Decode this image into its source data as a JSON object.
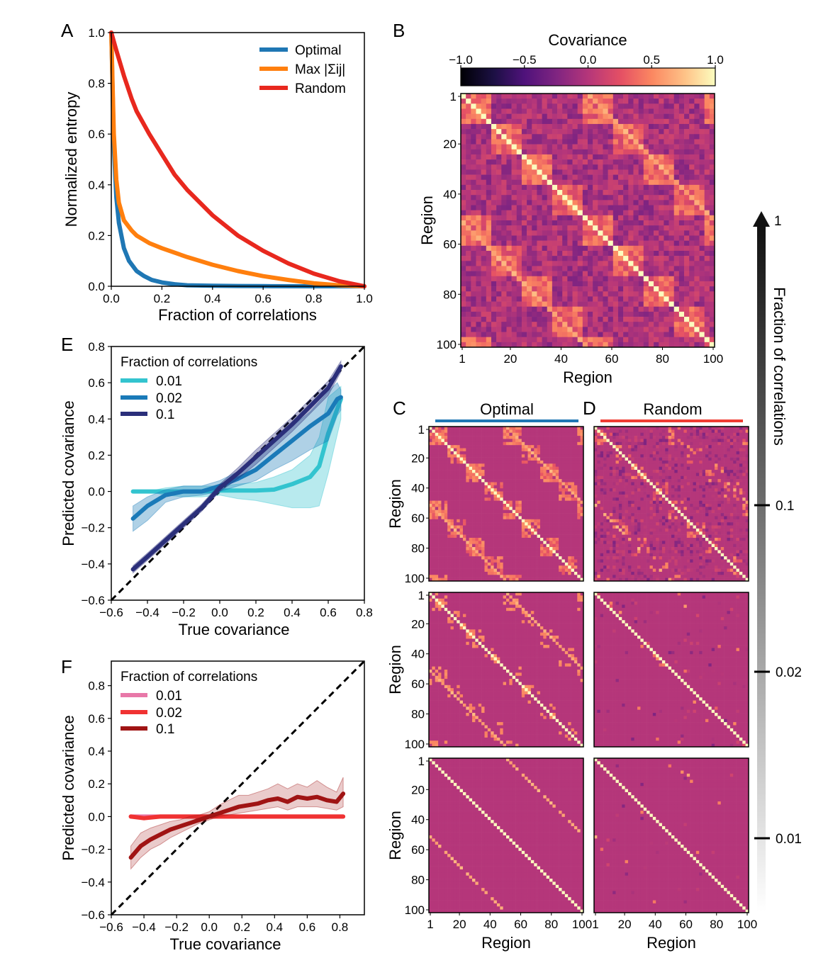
{
  "panels": {
    "A": "A",
    "B": "B",
    "C": "C",
    "D": "D",
    "E": "E",
    "F": "F"
  },
  "colorbar": {
    "title": "Covariance",
    "ticks": [
      "−1.0",
      "−0.5",
      "0.0",
      "0.5",
      "1.0"
    ],
    "colormap": "magma"
  },
  "fraction_bar": {
    "title": "Fraction of correlations",
    "top_label": "1",
    "ticks": [
      "0.1",
      "0.02",
      "0.01"
    ]
  },
  "col_headers": {
    "optimal": "Optimal",
    "random": "Random",
    "optimal_color": "#1f77b4",
    "random_color": "#f03c32"
  },
  "heatmap_labels": {
    "region": "Region",
    "ticks": [
      "1",
      "20",
      "40",
      "60",
      "80",
      "100"
    ]
  },
  "chart_data": [
    {
      "id": "A",
      "type": "line",
      "xlabel": "Fraction of correlations",
      "ylabel": "Normalized entropy",
      "xlim": [
        0.0,
        1.0
      ],
      "ylim": [
        0.0,
        1.0
      ],
      "xticks": [
        "0.0",
        "0.2",
        "0.4",
        "0.6",
        "0.8",
        "1.0"
      ],
      "yticks": [
        "0.0",
        "0.2",
        "0.4",
        "0.6",
        "0.8",
        "1.0"
      ],
      "legend": "top-right",
      "series": [
        {
          "name": "Optimal",
          "color": "#1f77b4",
          "x": [
            0.0,
            0.01,
            0.02,
            0.03,
            0.05,
            0.07,
            0.1,
            0.13,
            0.16,
            0.2,
            0.25,
            0.3,
            0.4,
            0.5,
            0.6,
            0.8,
            1.0
          ],
          "y": [
            1.0,
            0.55,
            0.35,
            0.25,
            0.15,
            0.1,
            0.06,
            0.04,
            0.025,
            0.015,
            0.008,
            0.004,
            0.002,
            0.001,
            0.0005,
            0.0,
            0.0
          ]
        },
        {
          "name": "Max |Σij|",
          "color": "#ff7f0e",
          "x": [
            0.0,
            0.01,
            0.02,
            0.03,
            0.05,
            0.08,
            0.1,
            0.15,
            0.2,
            0.3,
            0.4,
            0.5,
            0.6,
            0.7,
            0.8,
            0.9,
            1.0
          ],
          "y": [
            1.0,
            0.6,
            0.42,
            0.33,
            0.26,
            0.22,
            0.2,
            0.17,
            0.15,
            0.115,
            0.085,
            0.06,
            0.04,
            0.025,
            0.012,
            0.004,
            0.0
          ]
        },
        {
          "name": "Random",
          "color": "#e8281e",
          "x": [
            0.0,
            0.02,
            0.05,
            0.08,
            0.1,
            0.15,
            0.2,
            0.25,
            0.3,
            0.4,
            0.5,
            0.6,
            0.7,
            0.8,
            0.9,
            1.0
          ],
          "y": [
            1.0,
            0.93,
            0.83,
            0.74,
            0.69,
            0.6,
            0.52,
            0.44,
            0.38,
            0.28,
            0.2,
            0.14,
            0.09,
            0.05,
            0.02,
            0.0
          ]
        }
      ]
    },
    {
      "id": "E",
      "type": "line",
      "xlabel": "True covariance",
      "ylabel": "Predicted covariance",
      "xlim": [
        -0.6,
        0.8
      ],
      "ylim": [
        -0.6,
        0.8
      ],
      "xticks": [
        "−0.6",
        "−0.4",
        "−0.2",
        "0.0",
        "0.2",
        "0.4",
        "0.6",
        "0.8"
      ],
      "yticks": [
        "−0.6",
        "−0.4",
        "−0.2",
        "0.0",
        "0.2",
        "0.4",
        "0.6",
        "0.8"
      ],
      "legend_title": "Fraction of correlations",
      "legend": "top-left",
      "series": [
        {
          "name": "0.01",
          "color": "#33c4cf",
          "fill": "rgba(51,196,207,0.35)",
          "x": [
            -0.48,
            -0.4,
            -0.3,
            -0.2,
            -0.1,
            0.0,
            0.1,
            0.2,
            0.3,
            0.4,
            0.5,
            0.55,
            0.6,
            0.67
          ],
          "y": [
            0.0,
            0.0,
            0.0,
            0.0,
            0.0,
            0.005,
            0.005,
            0.005,
            0.01,
            0.04,
            0.08,
            0.14,
            0.32,
            0.51
          ],
          "lo": [
            0.0,
            0.0,
            -0.02,
            -0.03,
            -0.03,
            -0.02,
            -0.04,
            -0.05,
            -0.07,
            -0.09,
            -0.09,
            -0.08,
            0.1,
            0.4
          ],
          "hi": [
            0.0,
            0.0,
            0.02,
            0.03,
            0.03,
            0.03,
            0.04,
            0.05,
            0.08,
            0.12,
            0.2,
            0.3,
            0.52,
            0.58
          ]
        },
        {
          "name": "0.02",
          "color": "#1a7ab8",
          "fill": "rgba(26,122,184,0.35)",
          "x": [
            -0.48,
            -0.4,
            -0.3,
            -0.2,
            -0.1,
            0.0,
            0.1,
            0.2,
            0.3,
            0.4,
            0.5,
            0.6,
            0.65,
            0.67
          ],
          "y": [
            -0.15,
            -0.08,
            -0.02,
            0.0,
            0.0,
            0.03,
            0.07,
            0.12,
            0.2,
            0.28,
            0.36,
            0.43,
            0.51,
            0.52
          ],
          "lo": [
            -0.22,
            -0.16,
            -0.06,
            -0.03,
            -0.02,
            0.0,
            0.03,
            0.06,
            0.12,
            0.17,
            0.23,
            0.28,
            0.42,
            0.45
          ],
          "hi": [
            -0.08,
            -0.03,
            0.01,
            0.03,
            0.03,
            0.06,
            0.11,
            0.18,
            0.28,
            0.36,
            0.44,
            0.55,
            0.6,
            0.56
          ]
        },
        {
          "name": "0.1",
          "color": "#2b2f7a",
          "fill": "rgba(43,47,122,0.35)",
          "x": [
            -0.48,
            -0.4,
            -0.3,
            -0.2,
            -0.1,
            0.0,
            0.1,
            0.2,
            0.3,
            0.4,
            0.5,
            0.6,
            0.67
          ],
          "y": [
            -0.43,
            -0.36,
            -0.27,
            -0.18,
            -0.09,
            0.02,
            0.1,
            0.19,
            0.28,
            0.37,
            0.47,
            0.57,
            0.69
          ],
          "lo": [
            -0.45,
            -0.38,
            -0.29,
            -0.2,
            -0.11,
            0.0,
            0.07,
            0.15,
            0.24,
            0.33,
            0.43,
            0.53,
            0.66
          ],
          "hi": [
            -0.41,
            -0.34,
            -0.25,
            -0.16,
            -0.07,
            0.04,
            0.13,
            0.23,
            0.32,
            0.41,
            0.51,
            0.61,
            0.72
          ]
        }
      ]
    },
    {
      "id": "F",
      "type": "line",
      "xlabel": "True covariance",
      "ylabel": "Predicted covariance",
      "xlim": [
        -0.6,
        0.95
      ],
      "ylim": [
        -0.6,
        0.95
      ],
      "xticks": [
        "−0.6",
        "−0.4",
        "−0.2",
        "0.0",
        "0.2",
        "0.4",
        "0.6",
        "0.8"
      ],
      "yticks": [
        "−0.6",
        "−0.4",
        "−0.2",
        "0.0",
        "0.2",
        "0.4",
        "0.6",
        "0.8"
      ],
      "legend_title": "Fraction of correlations",
      "legend": "top-left",
      "series": [
        {
          "name": "0.01",
          "color": "#e878a8",
          "x": [
            -0.48,
            0.82
          ],
          "y": [
            0.0,
            0.0
          ]
        },
        {
          "name": "0.02",
          "color": "#f03232",
          "x": [
            -0.48,
            -0.4,
            -0.3,
            -0.2,
            -0.1,
            0.0,
            0.2,
            0.4,
            0.6,
            0.82
          ],
          "y": [
            0.0,
            -0.01,
            0.0,
            0.0,
            0.0,
            0.0,
            0.0,
            0.0,
            0.0,
            0.0
          ]
        },
        {
          "name": "0.1",
          "color": "#a01414",
          "fill": "rgba(160,20,20,0.22)",
          "x": [
            -0.48,
            -0.42,
            -0.36,
            -0.3,
            -0.24,
            -0.18,
            -0.12,
            -0.06,
            0.0,
            0.06,
            0.12,
            0.18,
            0.24,
            0.3,
            0.36,
            0.42,
            0.48,
            0.54,
            0.6,
            0.66,
            0.72,
            0.78,
            0.82
          ],
          "y": [
            -0.25,
            -0.18,
            -0.14,
            -0.11,
            -0.08,
            -0.06,
            -0.04,
            -0.02,
            0.0,
            0.02,
            0.04,
            0.06,
            0.07,
            0.08,
            0.1,
            0.11,
            0.09,
            0.12,
            0.11,
            0.12,
            0.1,
            0.09,
            0.14
          ],
          "lo": [
            -0.32,
            -0.25,
            -0.2,
            -0.17,
            -0.13,
            -0.1,
            -0.07,
            -0.04,
            -0.02,
            0.0,
            0.01,
            0.02,
            0.03,
            0.04,
            0.05,
            0.06,
            0.04,
            0.06,
            0.06,
            0.06,
            0.05,
            0.04,
            0.06
          ],
          "hi": [
            -0.18,
            -0.1,
            -0.07,
            -0.05,
            -0.03,
            -0.02,
            0.0,
            0.01,
            0.03,
            0.07,
            0.1,
            0.13,
            0.13,
            0.15,
            0.17,
            0.2,
            0.17,
            0.2,
            0.18,
            0.22,
            0.18,
            0.15,
            0.24
          ]
        }
      ]
    },
    {
      "id": "B",
      "type": "heatmap",
      "xlabel": "Region",
      "ylabel": "Region",
      "size": 100,
      "description_level": "full covariance"
    }
  ]
}
